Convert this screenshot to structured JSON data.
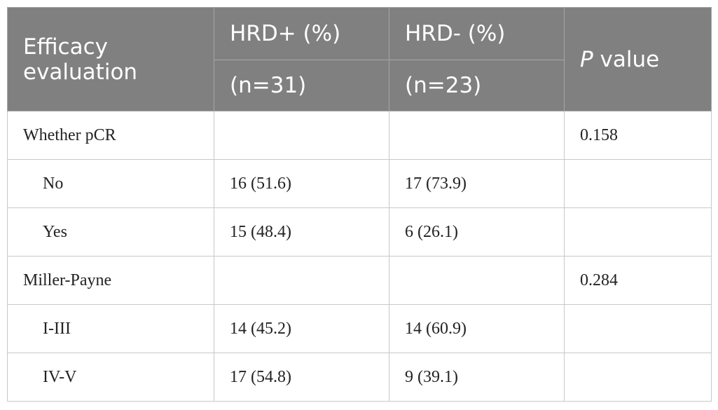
{
  "table": {
    "header": {
      "first": "Efficacy evaluation",
      "hrd_pos": "HRD+ (%)",
      "hrd_neg": "HRD- (%)",
      "p_value": "P value",
      "n_pos": "(n=31)",
      "n_neg": "(n=23)"
    },
    "groups": [
      {
        "label": "Whether pCR",
        "p": "0.158",
        "items": [
          {
            "label": "No",
            "hrd_pos": "16 (51.6)",
            "hrd_neg": "17 (73.9)"
          },
          {
            "label": "Yes",
            "hrd_pos": "15 (48.4)",
            "hrd_neg": "6 (26.1)"
          }
        ]
      },
      {
        "label": "Miller-Payne",
        "p": "0.284",
        "items": [
          {
            "label": "I-III",
            "hrd_pos": "14 (45.2)",
            "hrd_neg": "14 (60.9)"
          },
          {
            "label": "IV-V",
            "hrd_pos": "17 (54.8)",
            "hrd_neg": "9 (39.1)"
          }
        ]
      }
    ]
  }
}
